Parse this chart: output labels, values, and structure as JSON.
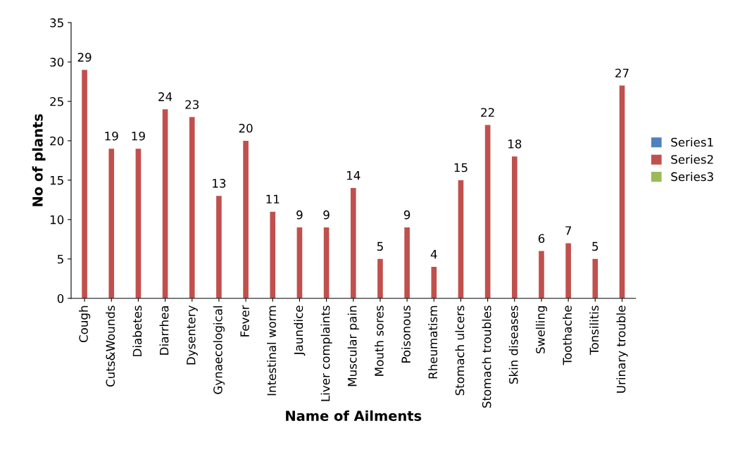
{
  "chart_data": {
    "type": "bar",
    "xlabel": "Name of Ailments",
    "ylabel": "No of plants",
    "categories": [
      "Cough",
      "Cuts&Wounds",
      "Diabetes",
      "Diarrhea",
      "Dysentery",
      "Gynaecological",
      "Fever",
      "Intestinal worm",
      "Jaundice",
      "Liver complaints",
      "Muscular pain",
      "Mouth sores",
      "Poisonous",
      "Rheumatism",
      "Stomach ulcers",
      "Stomach troubles",
      "Skin diseases",
      "Swelling",
      "Toothache",
      "Tonsilitis",
      "Urinary trouble"
    ],
    "series": [
      {
        "name": "Series1",
        "color": "#4f81bd",
        "values": [
          null,
          null,
          null,
          null,
          null,
          null,
          null,
          null,
          null,
          null,
          null,
          null,
          null,
          null,
          null,
          null,
          null,
          null,
          null,
          null,
          null
        ]
      },
      {
        "name": "Series2",
        "color": "#c0504d",
        "values": [
          29,
          19,
          19,
          24,
          23,
          13,
          20,
          11,
          9,
          9,
          14,
          5,
          9,
          4,
          15,
          22,
          18,
          6,
          7,
          5,
          27
        ]
      },
      {
        "name": "Series3",
        "color": "#9bbb59",
        "values": [
          null,
          null,
          null,
          null,
          null,
          null,
          null,
          null,
          null,
          null,
          null,
          null,
          null,
          null,
          null,
          null,
          null,
          null,
          null,
          null,
          null
        ]
      }
    ],
    "ylim": [
      0,
      35
    ],
    "yticks": [
      0,
      5,
      10,
      15,
      20,
      25,
      30,
      35
    ],
    "data_labels": true,
    "legend": "right",
    "grid": false
  }
}
